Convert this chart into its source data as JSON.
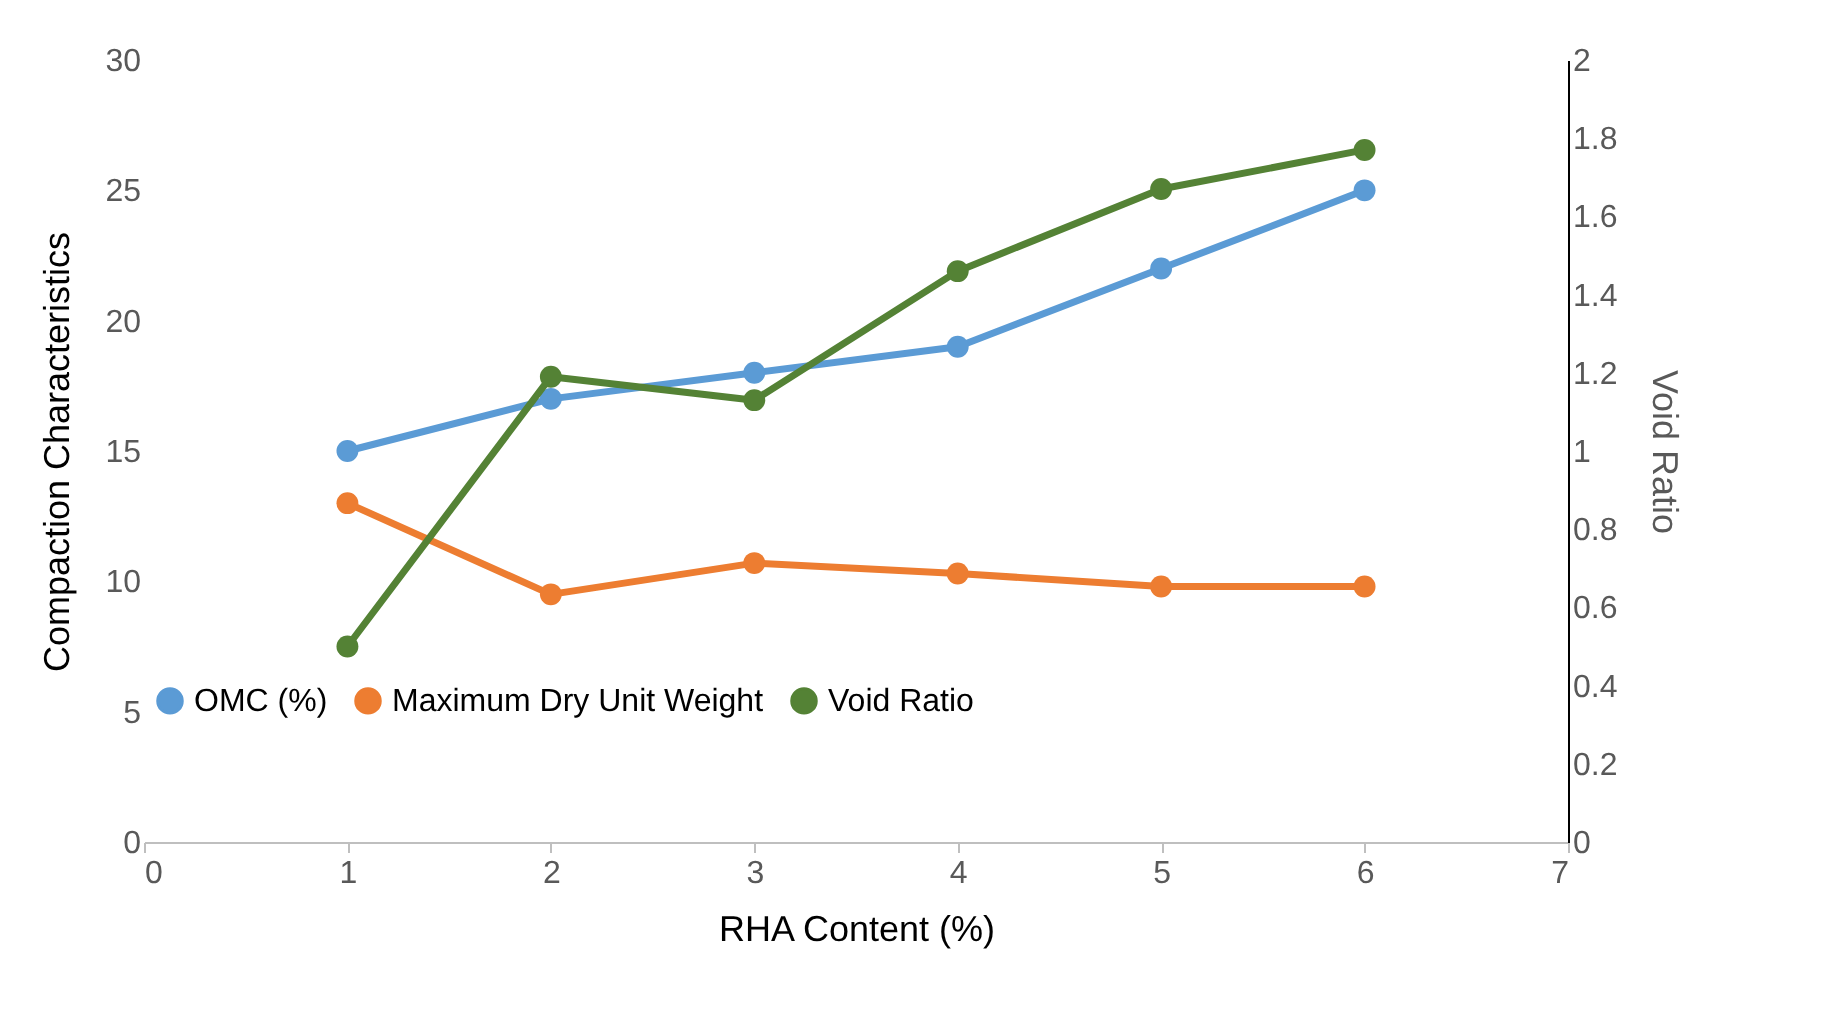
{
  "chart_data": {
    "type": "line",
    "xlabel": "RHA Content (%)",
    "ylabel": "Compaction Characteristics",
    "y2label": "Void Ratio",
    "x": [
      1,
      2,
      3,
      4,
      5,
      6
    ],
    "series": [
      {
        "name": "OMC (%)",
        "color": "#5b9bd5",
        "values": [
          15,
          17,
          18,
          19,
          22,
          25
        ]
      },
      {
        "name": "Maximum Dry Unit Weight",
        "color": "#ed7d31",
        "values": [
          13.0,
          9.5,
          10.7,
          10.3,
          9.8,
          9.8
        ]
      },
      {
        "name": "Void Ratio",
        "color": "#548235",
        "axis": "y2",
        "values": [
          0.5,
          1.19,
          1.13,
          1.46,
          1.67,
          1.77
        ]
      }
    ],
    "xlim": [
      0,
      7
    ],
    "xticks": [
      0,
      1,
      2,
      3,
      4,
      5,
      6,
      7
    ],
    "ylim": [
      0,
      30
    ],
    "yticks": [
      0,
      5,
      10,
      15,
      20,
      25,
      30
    ],
    "y2lim": [
      0,
      2
    ],
    "y2ticks": [
      0,
      0.2,
      0.4,
      0.6,
      0.8,
      1,
      1.2,
      1.4,
      1.6,
      1.8,
      2
    ],
    "legend": "bottom left",
    "marker": "circle",
    "grid": false,
    "line_style": "solid"
  }
}
